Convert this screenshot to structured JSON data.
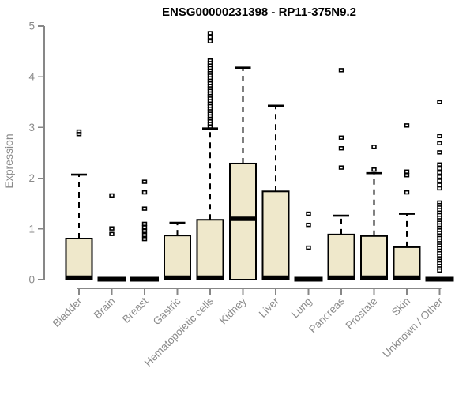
{
  "chart_data": {
    "type": "boxplot",
    "title": "ENSG00000231398 - RP11-375N9.2",
    "ylabel": "Expression",
    "xlabel": "",
    "ylim": [
      0,
      5
    ],
    "yticks": [
      0,
      1,
      2,
      3,
      4,
      5
    ],
    "grid": false,
    "legend": null,
    "categories": [
      "Bladder",
      "Brain",
      "Breast",
      "Gastric",
      "Hematopoietic cells",
      "Kidney",
      "Liver",
      "Lung",
      "Pancreas",
      "Prostate",
      "Skin",
      "Unknown / Other"
    ],
    "boxes": [
      {
        "category": "Bladder",
        "min": 0,
        "q1": 0,
        "median": 0,
        "q3": 0.81,
        "max": 2.07,
        "outliers": [
          2.92,
          2.87
        ]
      },
      {
        "category": "Brain",
        "min": 0,
        "q1": 0,
        "median": 0,
        "q3": 0,
        "max": 0,
        "outliers": [
          1.66,
          1.01,
          0.9
        ]
      },
      {
        "category": "Breast",
        "min": 0,
        "q1": 0,
        "median": 0,
        "q3": 0,
        "max": 0,
        "outliers": [
          1.93,
          1.72,
          1.4,
          1.1,
          1.03,
          0.96,
          0.88,
          0.8
        ]
      },
      {
        "category": "Gastric",
        "min": 0,
        "q1": 0,
        "median": 0,
        "q3": 0.87,
        "max": 1.12,
        "outliers": []
      },
      {
        "category": "Hematopoietic cells",
        "min": 0,
        "q1": 0,
        "median": 0,
        "q3": 1.18,
        "max": 2.98,
        "outliers": [
          4.86,
          4.78,
          4.7,
          4.32,
          4.27,
          4.22,
          4.17,
          4.12,
          4.07,
          4.02,
          3.97,
          3.92,
          3.87,
          3.82,
          3.77,
          3.72,
          3.67,
          3.62,
          3.57,
          3.52,
          3.47,
          3.42,
          3.37,
          3.32,
          3.27,
          3.22,
          3.17,
          3.12,
          3.07,
          3.02
        ]
      },
      {
        "category": "Kidney",
        "min": 0,
        "q1": 0,
        "median": 1.2,
        "q3": 2.29,
        "max": 4.18,
        "outliers": []
      },
      {
        "category": "Liver",
        "min": 0,
        "q1": 0,
        "median": 0,
        "q3": 1.74,
        "max": 3.43,
        "outliers": []
      },
      {
        "category": "Lung",
        "min": 0,
        "q1": 0,
        "median": 0,
        "q3": 0,
        "max": 0,
        "outliers": [
          1.3,
          1.08,
          0.63
        ]
      },
      {
        "category": "Pancreas",
        "min": 0,
        "q1": 0,
        "median": 0,
        "q3": 0.89,
        "max": 1.26,
        "outliers": [
          4.13,
          2.8,
          2.59,
          2.21
        ]
      },
      {
        "category": "Prostate",
        "min": 0,
        "q1": 0,
        "median": 0,
        "q3": 0.86,
        "max": 2.1,
        "outliers": [
          2.62,
          2.17
        ]
      },
      {
        "category": "Skin",
        "min": 0,
        "q1": 0,
        "median": 0,
        "q3": 0.64,
        "max": 1.3,
        "outliers": [
          3.04,
          2.13,
          2.06,
          1.72
        ]
      },
      {
        "category": "Unknown / Other",
        "min": 0,
        "q1": 0,
        "median": 0,
        "q3": 0,
        "max": 0,
        "outliers": [
          3.5,
          2.83,
          2.69,
          2.51,
          2.27,
          2.19,
          2.11,
          2.03,
          1.95,
          1.87,
          1.8,
          1.52,
          1.47,
          1.42,
          1.37,
          1.32,
          1.27,
          1.22,
          1.17,
          1.12,
          1.07,
          1.02,
          0.97,
          0.92,
          0.87,
          0.82,
          0.77,
          0.72,
          0.67,
          0.62,
          0.57,
          0.52,
          0.47,
          0.42,
          0.37,
          0.32,
          0.27,
          0.22,
          0.18
        ]
      }
    ],
    "colors": {
      "box_fill": "#EFE8CB",
      "box_stroke": "#000000",
      "median": "#000000",
      "whisker": "#000000",
      "outlier_stroke": "#000000",
      "outlier_fill": "#ffffff",
      "axis": "#878787",
      "tick_label": "#8a8a8a",
      "title": "#000000",
      "background": "#ffffff"
    }
  }
}
